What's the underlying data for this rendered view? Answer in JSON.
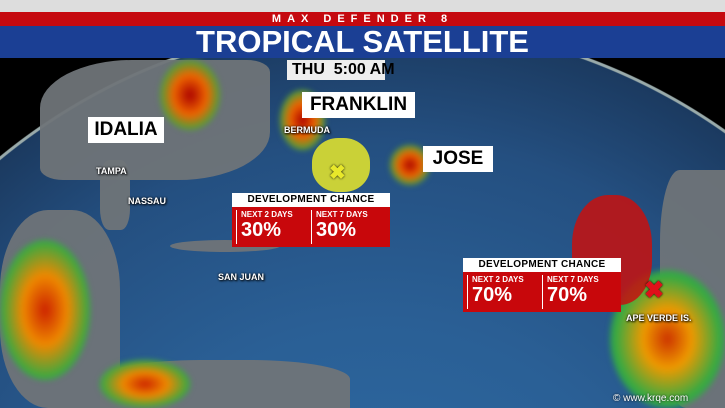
{
  "header": {
    "brand": "MAX DEFENDER 8",
    "title": "TROPICAL SATELLITE",
    "time": "THU  5:00 AM"
  },
  "storms": {
    "idalia": "IDALIA",
    "franklin": "FRANKLIN",
    "jose": "JOSE"
  },
  "places": {
    "tampa": "TAMPA",
    "nassau": "NASSAU",
    "bermuda": "BERMUDA",
    "san_juan": "SAN JUAN",
    "cape_verde": "APE VERDE IS."
  },
  "outlooks": [
    {
      "title": "DEVELOPMENT CHANCE",
      "d2_label": "NEXT 2 DAYS",
      "d2": "30%",
      "d7_label": "NEXT 7 DAYS",
      "d7": "30%",
      "area_color": "#e8e82a"
    },
    {
      "title": "DEVELOPMENT CHANCE",
      "d2_label": "NEXT 2 DAYS",
      "d2": "70%",
      "d7_label": "NEXT 7 DAYS",
      "d7": "70%",
      "area_color": "#c8100e"
    }
  ],
  "watermark": "© www.krqe.com",
  "colors": {
    "red_bar": "#c5090f",
    "blue_bar": "#1b3f94"
  }
}
